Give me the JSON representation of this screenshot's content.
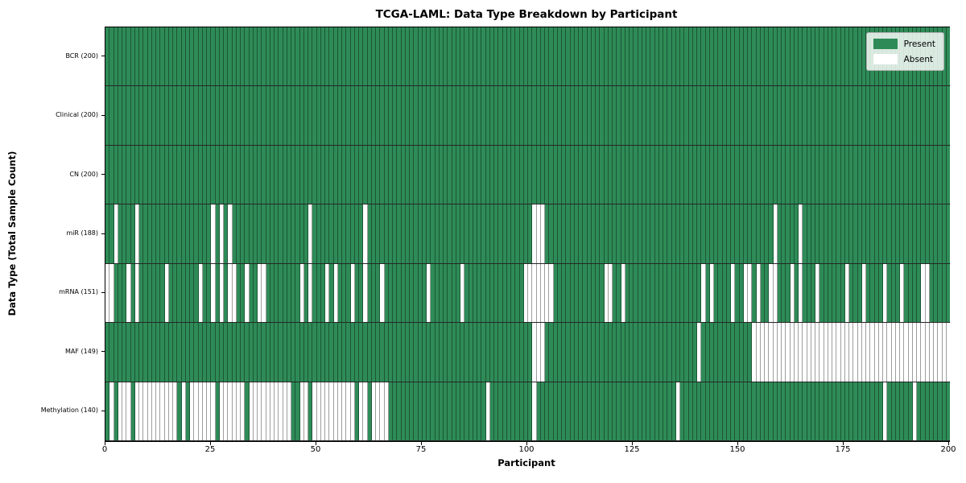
{
  "figure": {
    "title": "TCGA-LAML: Data Type Breakdown by Participant",
    "xlabel": "Participant",
    "ylabel": "Data Type (Total Sample Count)",
    "background": "#ffffff"
  },
  "colors": {
    "present": "#2e8b57",
    "absent": "#ffffff",
    "axis": "#000000",
    "legend_border": "#b0b0b0"
  },
  "chart_data": {
    "type": "heatmap",
    "title": "TCGA-LAML: Data Type Breakdown by Participant",
    "xlabel": "Participant",
    "ylabel": "Data Type (Total Sample Count)",
    "x_range": [
      0,
      200
    ],
    "n_participants": 200,
    "x_ticks": [
      0,
      25,
      50,
      75,
      100,
      125,
      150,
      175,
      200
    ],
    "legend_position": "upper right",
    "legend": [
      {
        "label": "Present",
        "color": "#2e8b57"
      },
      {
        "label": "Absent",
        "color": "#ffffff"
      }
    ],
    "rows": [
      {
        "label": "BCR (200)",
        "name": "BCR",
        "present_count": 200,
        "absent": []
      },
      {
        "label": "Clinical (200)",
        "name": "Clinical",
        "present_count": 200,
        "absent": []
      },
      {
        "label": "CN (200)",
        "name": "CN",
        "present_count": 200,
        "absent": []
      },
      {
        "label": "miR (188)",
        "name": "miR",
        "present_count": 188,
        "absent": [
          2,
          7,
          25,
          27,
          29,
          48,
          61,
          101,
          102,
          103,
          158,
          164
        ]
      },
      {
        "label": "mRNA (151)",
        "name": "mRNA",
        "present_count": 151,
        "absent": [
          0,
          1,
          5,
          7,
          14,
          22,
          25,
          27,
          29,
          30,
          33,
          36,
          37,
          46,
          48,
          52,
          54,
          58,
          61,
          65,
          76,
          84,
          99,
          100,
          101,
          102,
          103,
          104,
          105,
          118,
          119,
          122,
          141,
          143,
          148,
          151,
          152,
          154,
          157,
          158,
          162,
          164,
          168,
          175,
          179,
          184,
          188,
          193,
          194
        ]
      },
      {
        "label": "MAF (149)",
        "name": "MAF",
        "present_count": 149,
        "absent": [
          101,
          102,
          103,
          140,
          153,
          154,
          155,
          156,
          157,
          158,
          159,
          160,
          161,
          162,
          163,
          164,
          165,
          166,
          167,
          168,
          169,
          170,
          171,
          172,
          173,
          174,
          175,
          176,
          177,
          178,
          179,
          180,
          181,
          182,
          183,
          184,
          185,
          186,
          187,
          188,
          189,
          190,
          191,
          192,
          193,
          194,
          195,
          196,
          197,
          198,
          199
        ]
      },
      {
        "label": "Methylation (140)",
        "name": "Methylation",
        "present_count": 140,
        "absent": [
          1,
          3,
          4,
          5,
          7,
          8,
          9,
          10,
          11,
          12,
          13,
          14,
          15,
          16,
          18,
          20,
          21,
          22,
          23,
          24,
          25,
          27,
          28,
          29,
          30,
          31,
          32,
          34,
          35,
          36,
          37,
          38,
          39,
          40,
          41,
          42,
          43,
          46,
          47,
          49,
          50,
          51,
          52,
          53,
          54,
          55,
          56,
          57,
          58,
          60,
          61,
          63,
          64,
          65,
          66,
          90,
          101,
          135,
          184,
          191
        ]
      }
    ]
  }
}
